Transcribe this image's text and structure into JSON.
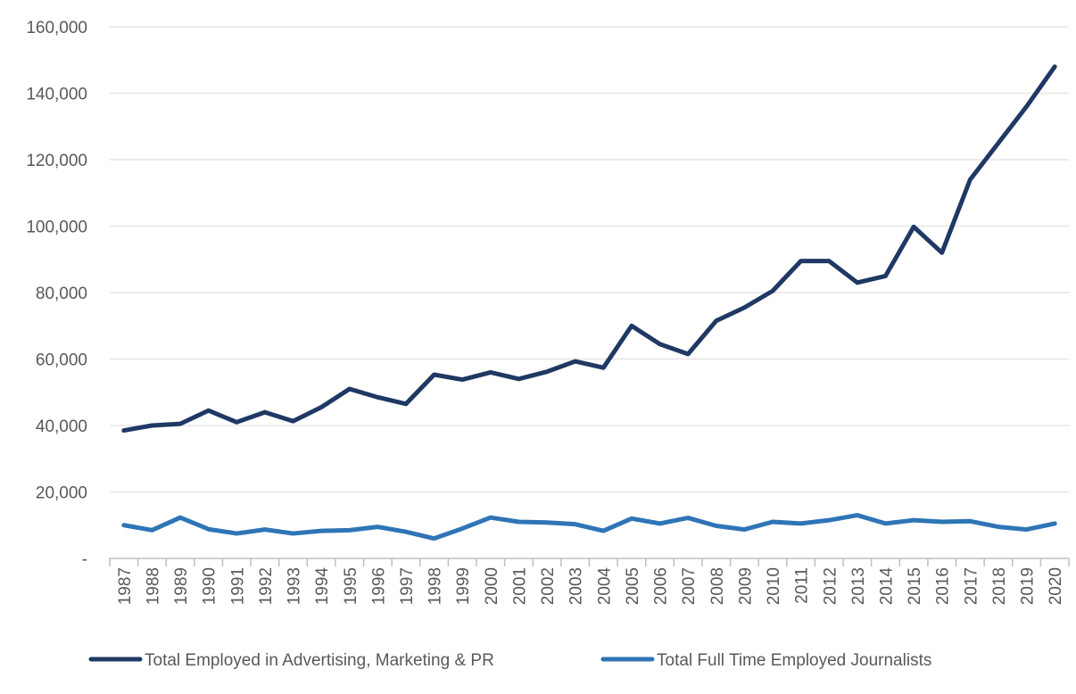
{
  "chart_data": {
    "type": "line",
    "title": "",
    "xlabel": "",
    "ylabel": "",
    "ylim": [
      0,
      160000
    ],
    "yticks": [
      0,
      20000,
      40000,
      60000,
      80000,
      100000,
      120000,
      140000,
      160000
    ],
    "ytick_labels": [
      "-",
      "20,000",
      "40,000",
      "60,000",
      "80,000",
      "100,000",
      "120,000",
      "140,000",
      "160,000"
    ],
    "grid": true,
    "legend_position": "bottom",
    "x": [
      "1987",
      "1988",
      "1989",
      "1990",
      "1991",
      "1992",
      "1993",
      "1994",
      "1995",
      "1996",
      "1997",
      "1998",
      "1999",
      "2000",
      "2001",
      "2002",
      "2003",
      "2004",
      "2005",
      "2006",
      "2007",
      "2008",
      "2009",
      "2010",
      "2011",
      "2012",
      "2013",
      "2014",
      "2015",
      "2016",
      "2017",
      "2018",
      "2019",
      "2020"
    ],
    "series": [
      {
        "name": "Total Employed in Advertising, Marketing & PR",
        "color": "#1f3864",
        "values": [
          38500,
          40000,
          40500,
          44500,
          41000,
          44000,
          41300,
          45500,
          51000,
          48500,
          46500,
          55300,
          53800,
          56000,
          54000,
          56200,
          59300,
          57400,
          70000,
          64500,
          61500,
          71500,
          75500,
          80500,
          89500,
          89500,
          83000,
          85000,
          99800,
          92000,
          114000,
          125000,
          136000,
          148000
        ]
      },
      {
        "name": "Total Full Time Employed Journalists",
        "color": "#2e75b6",
        "values": [
          10000,
          8500,
          12300,
          8800,
          7500,
          8700,
          7500,
          8300,
          8500,
          9500,
          8000,
          6000,
          9000,
          12300,
          11000,
          10800,
          10300,
          8300,
          12000,
          10500,
          12200,
          9800,
          8700,
          11000,
          10500,
          11500,
          13000,
          10500,
          11500,
          11000,
          11200,
          9500,
          8700,
          10500
        ]
      }
    ]
  }
}
